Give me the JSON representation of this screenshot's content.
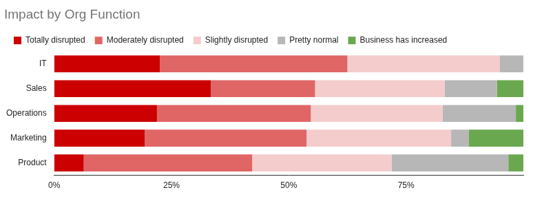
{
  "chart_data": {
    "type": "bar",
    "title": "Impact by Org Function",
    "orientation": "horizontal",
    "stacked": true,
    "grid": false,
    "legend": "top",
    "categories": [
      "IT",
      "Sales",
      "Operations",
      "Marketing",
      "Product"
    ],
    "series": [
      {
        "name": "Totally disrupted",
        "color": "#cc0000",
        "values": [
          22.5,
          33.4,
          21.9,
          19.3,
          6.3
        ]
      },
      {
        "name": "Moderately disrupted",
        "color": "#e06666",
        "values": [
          40.0,
          22.2,
          32.8,
          34.5,
          35.9
        ]
      },
      {
        "name": "Slightly disrupted",
        "color": "#f4cccc",
        "values": [
          32.5,
          27.6,
          28.1,
          30.8,
          29.7
        ]
      },
      {
        "name": "Pretty normal",
        "color": "#b7b7b7",
        "values": [
          5.0,
          11.2,
          15.6,
          3.8,
          24.9
        ]
      },
      {
        "name": "Business has increased",
        "color": "#6aa84f",
        "values": [
          0,
          5.6,
          1.6,
          11.6,
          3.2
        ]
      }
    ],
    "xlim": [
      0,
      100
    ],
    "xticks": [
      {
        "value": 0,
        "label": "0%"
      },
      {
        "value": 25,
        "label": "25%"
      },
      {
        "value": 50,
        "label": "50%"
      },
      {
        "value": 75,
        "label": "75%"
      }
    ]
  }
}
